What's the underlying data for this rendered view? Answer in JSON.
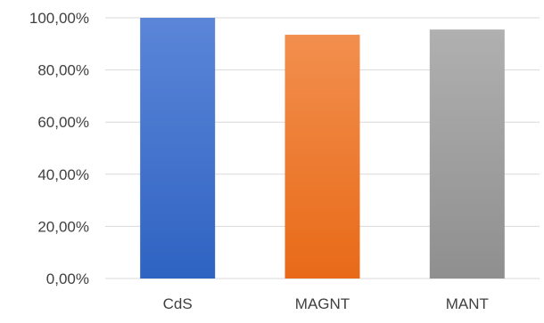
{
  "chart_data": {
    "type": "bar",
    "title": "",
    "xlabel": "",
    "ylabel": "",
    "categories": [
      "CdS",
      "MAGNT",
      "MANT"
    ],
    "values": [
      100.0,
      93.5,
      95.5
    ],
    "ylim": [
      0,
      100
    ],
    "yticks": [
      0,
      20,
      40,
      60,
      80,
      100
    ],
    "ytick_labels": [
      "0,00%",
      "20,00%",
      "40,00%",
      "60,00%",
      "80,00%",
      "100,00%"
    ],
    "grid": true,
    "legend": "none",
    "bar_colors": [
      {
        "top": "#5B86D8",
        "bottom": "#2F63C2"
      },
      {
        "top": "#F28F4E",
        "bottom": "#E86A18"
      },
      {
        "top": "#B0B0B0",
        "bottom": "#8F8F8F"
      }
    ],
    "grid_color": "#D9D9D9",
    "text_color": "#404040"
  }
}
